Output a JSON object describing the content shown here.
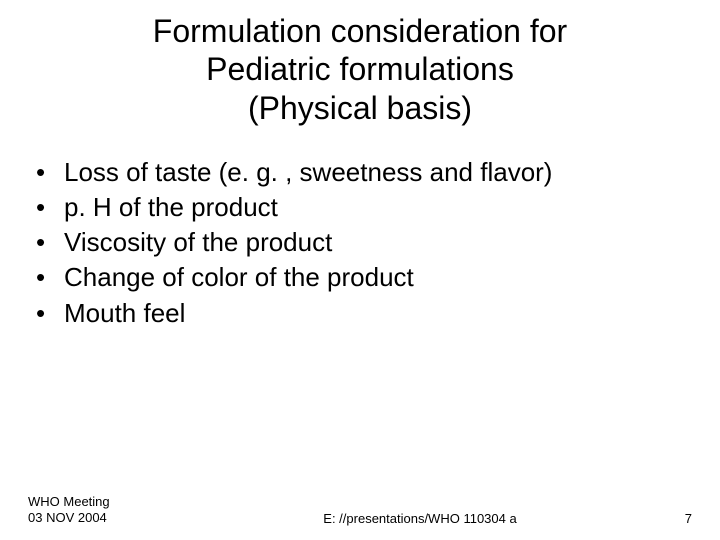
{
  "title": {
    "line1": "Formulation consideration for",
    "line2": "Pediatric formulations",
    "line3": "(Physical basis)"
  },
  "bullets": [
    "Loss of taste (e. g. , sweetness and flavor)",
    "p. H of the product",
    "Viscosity of the product",
    "Change of color of the product",
    "Mouth feel"
  ],
  "footer": {
    "left_line1": "WHO Meeting",
    "left_line2": "03 NOV 2004",
    "center": "E: //presentations/WHO 110304 a",
    "page": "7"
  },
  "style": {
    "background_color": "#ffffff",
    "text_color": "#000000",
    "title_fontsize": 32,
    "body_fontsize": 26,
    "footer_fontsize": 13,
    "font_family": "Arial"
  }
}
